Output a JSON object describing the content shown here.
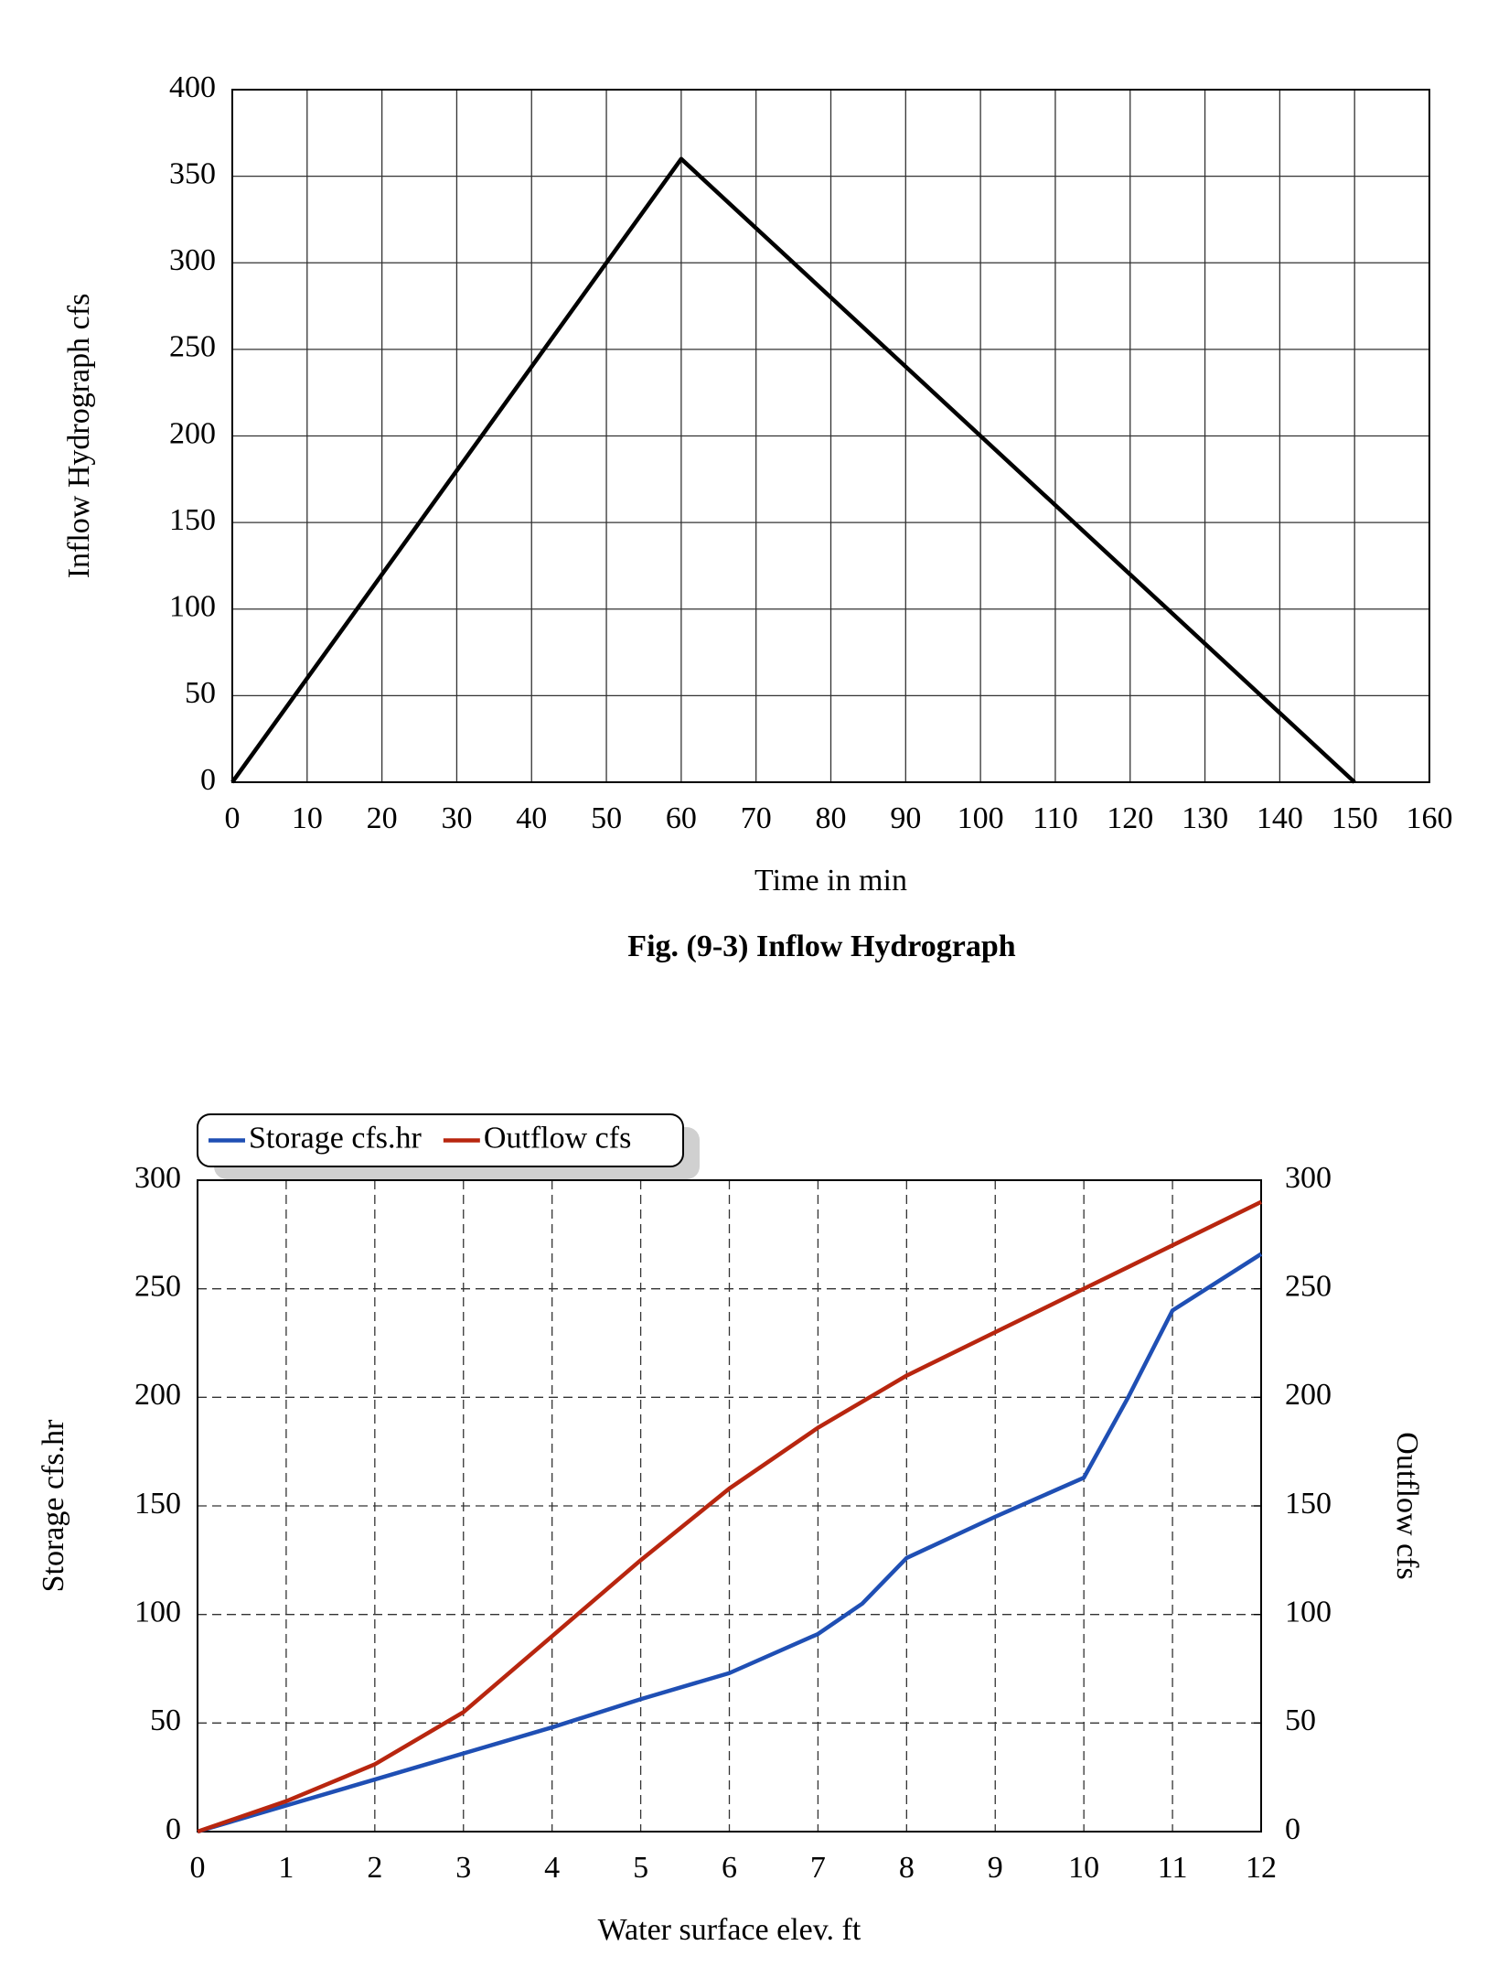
{
  "chart_data": [
    {
      "type": "line",
      "caption": "Fig. (9-3) Inflow Hydrograph",
      "x_label": "Time in min",
      "y_label": "Inflow Hydrograph cfs",
      "x": [
        0,
        60,
        150
      ],
      "values": [
        0,
        360,
        0
      ],
      "color": "#000000",
      "xlim": [
        0,
        160
      ],
      "xticks": [
        0,
        10,
        20,
        30,
        40,
        50,
        60,
        70,
        80,
        90,
        100,
        110,
        120,
        130,
        140,
        150,
        160
      ],
      "ylim": [
        0,
        400
      ],
      "yticks": [
        0,
        50,
        100,
        150,
        200,
        250,
        300,
        350,
        400
      ],
      "grid": "solid"
    },
    {
      "type": "line",
      "x_label": "Water surface elev. ft",
      "y_label": "Storage cfs.hr",
      "y2_label": "Outflow cfs",
      "x": [
        0,
        1,
        2,
        3,
        4,
        5,
        6,
        7,
        7.5,
        8,
        9,
        10,
        10.5,
        11,
        12
      ],
      "series": [
        {
          "name": "Storage cfs.hr",
          "color": "#1f4fb4",
          "values": [
            0,
            12,
            24,
            36,
            48,
            61,
            73,
            91,
            105,
            126,
            145,
            163,
            200,
            240,
            266
          ]
        },
        {
          "name": "Outflow cfs",
          "color": "#b8260f",
          "axis": "y2",
          "values": [
            0,
            14,
            31,
            55,
            90,
            125,
            158,
            186,
            198,
            210,
            230,
            250,
            260,
            270,
            290
          ]
        }
      ],
      "xlim": [
        0,
        12
      ],
      "xticks": [
        0,
        1,
        2,
        3,
        4,
        5,
        6,
        7,
        8,
        9,
        10,
        11,
        12
      ],
      "ylim": [
        0,
        300
      ],
      "yticks": [
        0,
        50,
        100,
        150,
        200,
        250,
        300
      ],
      "y2lim": [
        0,
        300
      ],
      "y2ticks": [
        0,
        50,
        100,
        150,
        200,
        250,
        300
      ],
      "grid": "dashed",
      "legend": "top-left"
    }
  ]
}
